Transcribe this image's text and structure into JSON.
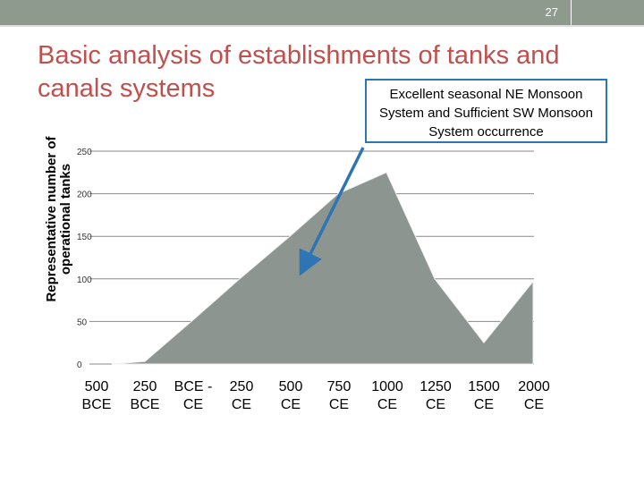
{
  "slide": {
    "page_number": "27",
    "title": "Basic analysis of establishments of tanks and canals systems",
    "callout": "Excellent seasonal NE Monsoon System and Sufficient SW Monsoon System occurrence",
    "colors": {
      "accent": "#c0504d",
      "header": "#8f9a8f",
      "arrow": "#2e75b6",
      "area": "#8c9590"
    }
  },
  "chart_data": {
    "type": "area",
    "ylabel": "Representative number of operational tanks",
    "ylim": [
      0,
      250
    ],
    "yticks": [
      0,
      50,
      100,
      150,
      200,
      250
    ],
    "grid": true,
    "categories": [
      [
        "500",
        "BCE"
      ],
      [
        "250",
        "BCE"
      ],
      [
        "BCE -",
        "CE"
      ],
      [
        "250",
        "CE"
      ],
      [
        "500",
        "CE"
      ],
      [
        "750",
        "CE"
      ],
      [
        "1000",
        "CE"
      ],
      [
        "1250",
        "CE"
      ],
      [
        "1500",
        "CE"
      ],
      [
        "2000",
        "CE"
      ]
    ],
    "series": [
      {
        "values": [
          0,
          3,
          50,
          100,
          150,
          200,
          225,
          100,
          25,
          97
        ]
      }
    ]
  }
}
